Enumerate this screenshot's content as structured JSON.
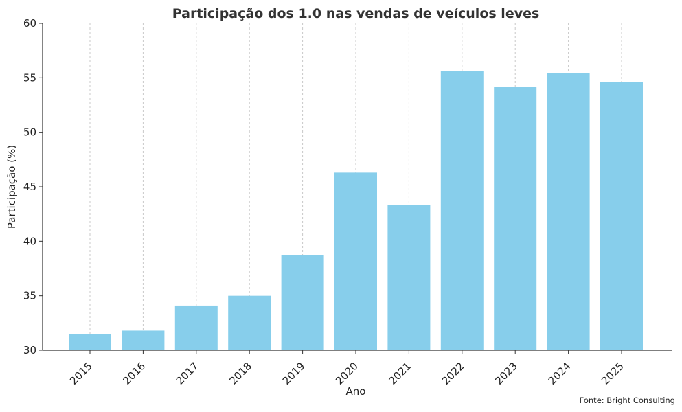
{
  "chart_data": {
    "type": "bar",
    "title": "Participação dos 1.0 nas vendas de veículos leves",
    "xlabel": "Ano",
    "ylabel": "Participação (%)",
    "categories": [
      "2015",
      "2016",
      "2017",
      "2018",
      "2019",
      "2020",
      "2021",
      "2022",
      "2023",
      "2024",
      "2025"
    ],
    "values": [
      31.5,
      31.8,
      34.1,
      35.0,
      38.7,
      46.3,
      43.3,
      55.6,
      54.2,
      55.4,
      54.6
    ],
    "ylim": [
      30,
      60
    ],
    "yticks": [
      30,
      35,
      40,
      45,
      50,
      55,
      60
    ],
    "grid": "vertical dashed",
    "bar_color": "#87ceeb",
    "source": "Fonte: Bright Consulting"
  }
}
